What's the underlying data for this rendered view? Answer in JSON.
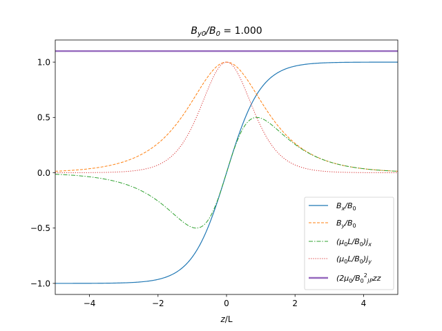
{
  "chart_data": {
    "type": "line",
    "title_main": "B",
    "title_sub": "y0",
    "title_mid": "/B",
    "title_sub2": "0",
    "title_end": " = 1.000",
    "xlabel_main": "z",
    "xlabel_end": "/L",
    "xlim": [
      -5,
      5
    ],
    "ylim": [
      -1.1,
      1.2
    ],
    "xticks": [
      -4,
      -2,
      0,
      2,
      4
    ],
    "xtick_labels": [
      "−4",
      "−2",
      "0",
      "2",
      "4"
    ],
    "yticks": [
      -1.0,
      -0.5,
      0.0,
      0.5,
      1.0
    ],
    "ytick_labels": [
      "−1.0",
      "−0.5",
      "0.0",
      "0.5",
      "1.0"
    ],
    "grid": false,
    "legend_position": "lower-right",
    "series": [
      {
        "key": "Bx",
        "formula": "tanh(z)",
        "color": "#1f77b4",
        "style": "solid",
        "legend": [
          "B",
          "x",
          "/B",
          "0"
        ]
      },
      {
        "key": "By",
        "formula": "sech(z)",
        "color": "#ff7f0e",
        "style": "dashed",
        "legend": [
          "B",
          "y",
          "/B",
          "0"
        ]
      },
      {
        "key": "jx",
        "formula": "sech(z)*tanh(z)",
        "color": "#2ca02c",
        "style": "dashdot",
        "legend": [
          "(μ",
          "0",
          "L/B",
          "0",
          ")j",
          "x"
        ]
      },
      {
        "key": "jy",
        "formula": "sech^2(z)",
        "color": "#d62728",
        "style": "dotted",
        "legend": [
          "(μ",
          "0",
          "L/B",
          "0",
          ")j",
          "y"
        ]
      },
      {
        "key": "Pzz",
        "formula": "constant 1.1",
        "value": 1.1,
        "color": "#9467bd",
        "style": "thick",
        "legend": [
          "(2μ",
          "0",
          "/B",
          "0",
          "2",
          ")P",
          "zz"
        ]
      }
    ]
  }
}
